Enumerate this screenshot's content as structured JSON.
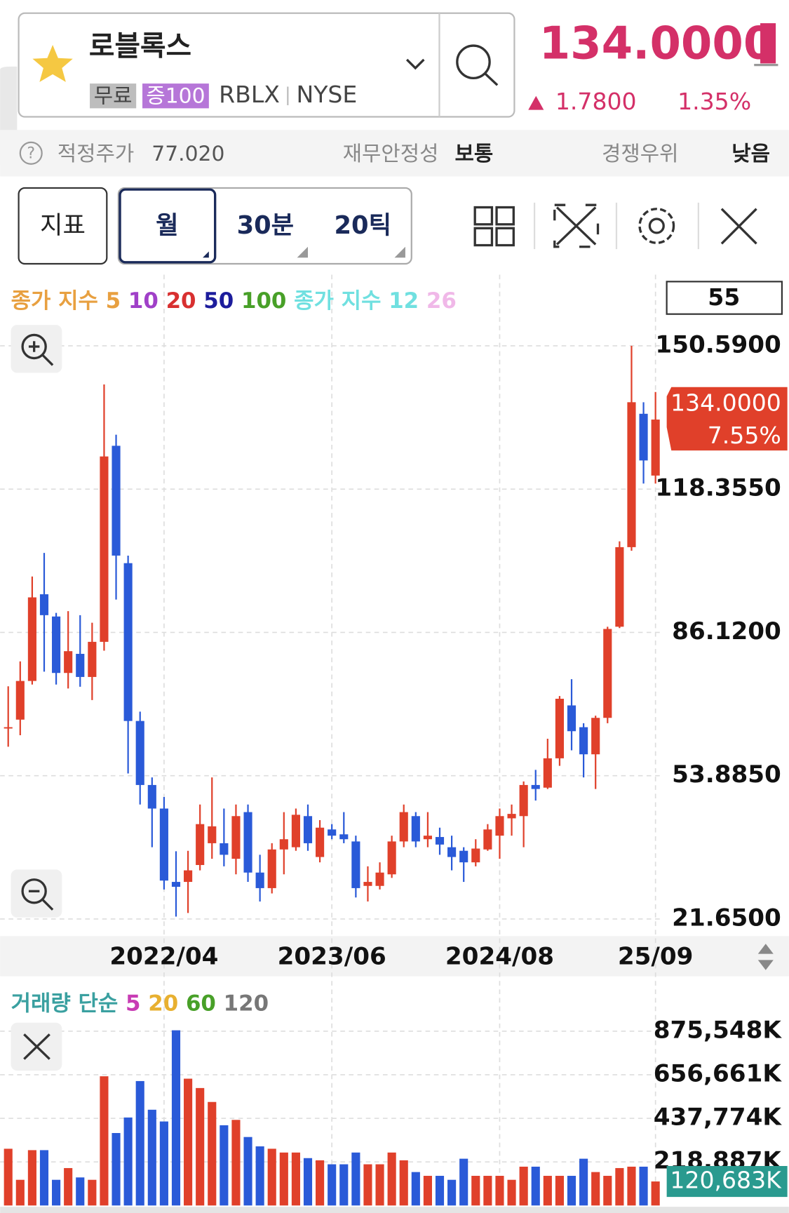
{
  "header": {
    "name": "로블록스",
    "badges": [
      "무료",
      "증100"
    ],
    "ticker": "RBLX",
    "exchange": "NYSE",
    "price": "134.0000",
    "change": "1.7800",
    "change_pct": "1.35%"
  },
  "info": {
    "fair_price_label": "적정주가",
    "fair_price": "77.020",
    "stability_label": "재무안정성",
    "stability": "보통",
    "competition_label": "경쟁우위",
    "competition": "낮음"
  },
  "toolbar": {
    "indicator": "지표",
    "periods": [
      "월",
      "30분",
      "20틱"
    ]
  },
  "chart_data": [
    {
      "type": "candlestick",
      "legend": [
        {
          "text": "종가 지수",
          "color": "#e8a040"
        },
        {
          "text": "5",
          "color": "#e8a040"
        },
        {
          "text": "10",
          "color": "#a040c8"
        },
        {
          "text": "20",
          "color": "#d83030"
        },
        {
          "text": "50",
          "color": "#1c1c9c"
        },
        {
          "text": "100",
          "color": "#48a028"
        },
        {
          "text": "종가 지수",
          "color": "#70e0e0"
        },
        {
          "text": "12",
          "color": "#70e0e0"
        },
        {
          "text": "26",
          "color": "#f0b8e8"
        }
      ],
      "count": 55,
      "categories": [
        null,
        null,
        null,
        null,
        null,
        null,
        null,
        null,
        null,
        null,
        null,
        null,
        null,
        "2022/04",
        null,
        null,
        null,
        null,
        null,
        null,
        null,
        null,
        null,
        null,
        null,
        null,
        null,
        "2023/06",
        null,
        null,
        null,
        null,
        null,
        null,
        null,
        null,
        null,
        null,
        null,
        null,
        null,
        "2024/08",
        null,
        null,
        null,
        null,
        null,
        null,
        null,
        null,
        null,
        null,
        null,
        null,
        "25/09"
      ],
      "open": [
        64.5,
        66.5,
        75.2,
        94.7,
        89.7,
        77,
        81.3,
        76.1,
        84,
        128.1,
        101.7,
        66.2,
        51.8,
        46.5,
        30,
        30,
        33.8,
        38.7,
        38.7,
        35.2,
        45.7,
        32.1,
        28.6,
        37.3,
        37.8,
        44.8,
        35.6,
        41.8,
        40.7,
        39.1,
        29.1,
        29.1,
        31.7,
        39.1,
        44.8,
        39.6,
        40.1,
        37.8,
        37,
        34.4,
        37.3,
        40.4,
        44.3,
        44.8,
        51.8,
        51.2,
        57.8,
        69.7,
        64.8,
        58.7,
        66.9,
        87.4,
        105.3,
        135.3,
        121.4
      ],
      "high": [
        74,
        79.6,
        98.7,
        104,
        90.5,
        90.9,
        90,
        88.3,
        141.9,
        130.6,
        103.4,
        68.3,
        53.5,
        49.1,
        36.9,
        37,
        47.4,
        53.5,
        46.5,
        47.4,
        47.4,
        36.1,
        38.7,
        45.7,
        46.5,
        47.4,
        43.9,
        43,
        45.7,
        40.4,
        33.5,
        34.4,
        40.4,
        47.4,
        45.7,
        45.7,
        42.2,
        40.4,
        37.8,
        39.6,
        43,
        46.5,
        47.4,
        52.6,
        55.2,
        62.2,
        71.8,
        75.6,
        65.7,
        67.4,
        87.4,
        106.6,
        150.6,
        137.9,
        140.2
      ],
      "low": [
        60.4,
        63,
        74.4,
        77.3,
        74.4,
        73.5,
        73.9,
        70.9,
        82,
        93.5,
        54.4,
        47.4,
        37.8,
        28.3,
        22.2,
        23,
        32.6,
        35.2,
        33.5,
        31.7,
        30,
        25.6,
        27.4,
        31.7,
        37,
        37,
        34.4,
        39.6,
        38.7,
        26.5,
        25.6,
        28.3,
        30.9,
        37.8,
        37.8,
        37.8,
        36.1,
        32.6,
        30,
        33.5,
        37,
        35.2,
        40.4,
        37.8,
        48.3,
        50.9,
        56.1,
        59.6,
        53.5,
        50.9,
        65.7,
        87.1,
        104.5,
        119.6,
        119.6
      ],
      "close": [
        64.8,
        75.2,
        94,
        90,
        77,
        81.9,
        76.1,
        84,
        125.7,
        103.4,
        66.2,
        51.8,
        46.5,
        30.3,
        28.9,
        32.6,
        43,
        42.5,
        36.1,
        44.8,
        32.1,
        28.6,
        37.3,
        39.6,
        45.1,
        38.7,
        42.2,
        40.4,
        39.6,
        28.6,
        30,
        32.1,
        39.1,
        45.7,
        39.1,
        40.4,
        38.4,
        35.6,
        34.4,
        37.5,
        41.8,
        44.8,
        45.3,
        51.8,
        50.9,
        57.8,
        71.2,
        63.9,
        58.7,
        66.9,
        86.9,
        105.3,
        137.9,
        124.8,
        134
      ],
      "close_labels": [
        null,
        null,
        null,
        null,
        null,
        null,
        null,
        null,
        null,
        null,
        null,
        null,
        null,
        null,
        null,
        null,
        null,
        null,
        null,
        null,
        null,
        null,
        null,
        null,
        null,
        null,
        null,
        null,
        null,
        null,
        null,
        null,
        null,
        null,
        null,
        null,
        null,
        null,
        null,
        null,
        null,
        null,
        null,
        null,
        null,
        null,
        null,
        null,
        null,
        null,
        null,
        null,
        null,
        null,
        "134.0000"
      ],
      "change_label": "7.55%",
      "up_color": "#e0402a",
      "down_color": "#2a5ad8",
      "ylim": [
        18.69,
        157.03
      ],
      "yticks": [
        {
          "value": 21.65,
          "label": "21.6500"
        },
        {
          "value": 53.885,
          "label": "53.8850"
        },
        {
          "value": 86.12,
          "label": "86.1200"
        },
        {
          "value": 118.355,
          "label": "118.3550"
        },
        {
          "value": 150.59,
          "label": "150.5900"
        }
      ],
      "grid": true
    },
    {
      "type": "bar",
      "legend": [
        {
          "text": "거래량 단순",
          "color": "#3aa0a0"
        },
        {
          "text": "5",
          "color": "#c83cb4"
        },
        {
          "text": "20",
          "color": "#e8b030"
        },
        {
          "text": "60",
          "color": "#48a028"
        },
        {
          "text": "120",
          "color": "#777777"
        }
      ],
      "values": [
        285000,
        129000,
        278000,
        278000,
        129000,
        188000,
        141000,
        129000,
        649000,
        364000,
        442000,
        625000,
        481000,
        422000,
        880000,
        637000,
        590000,
        520000,
        403000,
        430000,
        344000,
        297000,
        285000,
        266000,
        266000,
        238000,
        227000,
        207000,
        207000,
        266000,
        207000,
        207000,
        266000,
        227000,
        168000,
        149000,
        149000,
        129000,
        235000,
        149000,
        149000,
        149000,
        129000,
        195000,
        195000,
        149000,
        149000,
        149000,
        235000,
        168000,
        149000,
        188000,
        195000,
        195000,
        120683
      ],
      "value_labels": [
        null,
        null,
        null,
        null,
        null,
        null,
        null,
        null,
        null,
        null,
        null,
        null,
        null,
        null,
        null,
        null,
        null,
        null,
        null,
        null,
        null,
        null,
        null,
        null,
        null,
        null,
        null,
        null,
        null,
        null,
        null,
        null,
        null,
        null,
        null,
        null,
        null,
        null,
        null,
        null,
        null,
        null,
        null,
        null,
        null,
        null,
        null,
        null,
        null,
        null,
        null,
        null,
        null,
        null,
        "120,683K"
      ],
      "label_color": "#2a9a8f",
      "ylim": [
        0,
        925939
      ],
      "yticks": [
        {
          "value": 218887,
          "label": "218,887K"
        },
        {
          "value": 437774,
          "label": "437,774K"
        },
        {
          "value": 656661,
          "label": "656,661K"
        },
        {
          "value": 875548,
          "label": "875,548K"
        }
      ],
      "grid": true
    }
  ]
}
